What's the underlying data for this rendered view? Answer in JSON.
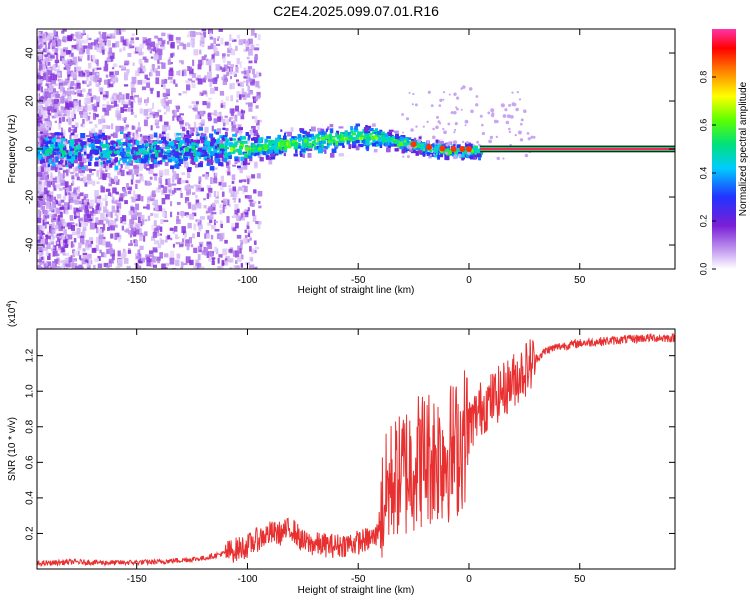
{
  "title": "C2E4.2025.099.07.01.R16",
  "chart_data": [
    {
      "type": "heatmap",
      "title": "C2E4.2025.099.07.01.R16",
      "xlabel": "Height of straight line (km)",
      "ylabel": "Frequency (Hz)",
      "xlim": [
        -195,
        93
      ],
      "ylim": [
        -50,
        50
      ],
      "xticks": [
        -150,
        -100,
        -50,
        0,
        50
      ],
      "xtick_labels": [
        "-150",
        "-100",
        "-50",
        "0",
        "50"
      ],
      "yticks": [
        -40,
        -20,
        0,
        20,
        40
      ],
      "ytick_labels": [
        "-40",
        "-20",
        "0",
        "20",
        "40"
      ],
      "colorbar": {
        "label": "Normalized spectral amplitude",
        "range": [
          0,
          1
        ],
        "ticks": [
          0.0,
          0.2,
          0.4,
          0.6,
          0.8
        ],
        "tick_labels": [
          "0.0",
          "0.2",
          "0.4",
          "0.6",
          "0.8"
        ],
        "colors": [
          "#ffffff",
          "#c9a6f2",
          "#7a1fd6",
          "#2233ff",
          "#00ccff",
          "#00e07a",
          "#5cff00",
          "#ffff00",
          "#ff8800",
          "#ff0000",
          "#ff33aa"
        ]
      },
      "ridge": {
        "x": [
          -195,
          -150,
          -100,
          -60,
          -50,
          -40,
          -30,
          -20,
          -10,
          0,
          10,
          93
        ],
        "frequency": [
          0,
          0,
          1,
          5,
          6,
          5,
          3,
          1,
          0,
          0,
          0,
          0
        ]
      },
      "grid": false
    },
    {
      "type": "line",
      "xlabel": "Height of straight line (km)",
      "ylabel": "SNR (10 * v/v)",
      "multiplier": "(x10",
      "multiplier_exp": "4",
      "multiplier_close": ")",
      "xlim": [
        -195,
        93
      ],
      "ylim": [
        0,
        13500
      ],
      "xticks": [
        -150,
        -100,
        -50,
        0,
        50
      ],
      "xtick_labels": [
        "-150",
        "-100",
        "-50",
        "0",
        "50"
      ],
      "yticks": [
        2000,
        4000,
        6000,
        8000,
        10000,
        12000
      ],
      "ytick_labels": [
        "0.2",
        "0.4",
        "0.6",
        "0.8",
        "1.0",
        "1.2"
      ],
      "color": "#e83030",
      "series": [
        {
          "name": "SNR",
          "x": [
            -195,
            -180,
            -160,
            -140,
            -120,
            -110,
            -100,
            -95,
            -90,
            -85,
            -80,
            -75,
            -70,
            -60,
            -50,
            -42,
            -38,
            -35,
            -32,
            -28,
            -25,
            -20,
            -15,
            -10,
            -5,
            0,
            5,
            10,
            15,
            20,
            25,
            30,
            35,
            40,
            50,
            60,
            70,
            80,
            93
          ],
          "y": [
            300,
            400,
            350,
            400,
            600,
            900,
            1300,
            1700,
            2000,
            2000,
            2300,
            1500,
            1400,
            1300,
            1500,
            1800,
            4000,
            5000,
            5200,
            5600,
            6000,
            6300,
            6400,
            6500,
            6800,
            8000,
            9000,
            9500,
            10000,
            10600,
            11200,
            11800,
            12300,
            12500,
            12700,
            12800,
            12900,
            13000,
            13000
          ]
        }
      ],
      "grid": false
    }
  ]
}
